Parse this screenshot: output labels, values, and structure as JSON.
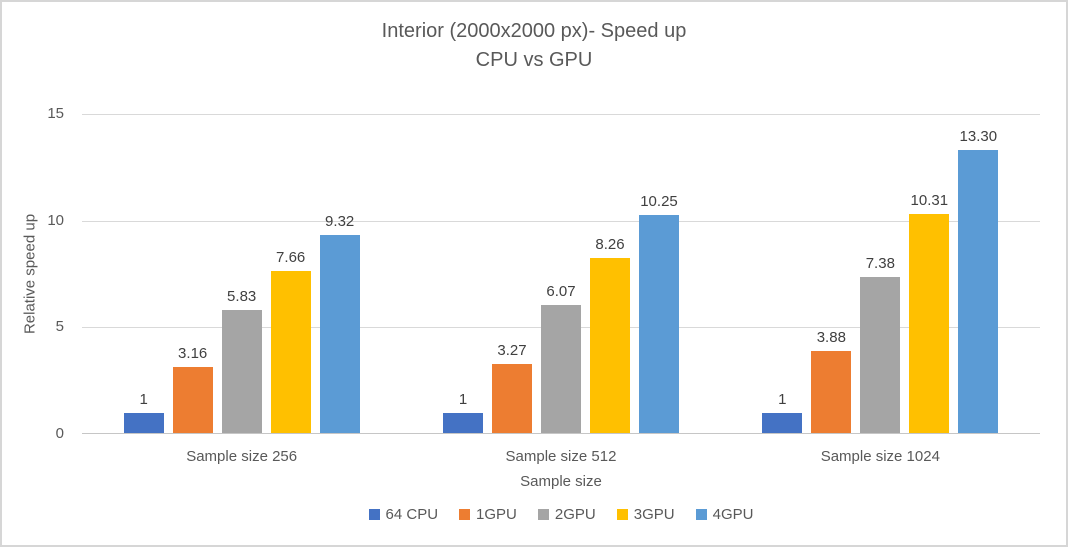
{
  "chart_data": {
    "type": "bar",
    "title": "Interior (2000x2000 px)- Speed up",
    "subtitle": "CPU vs GPU",
    "xlabel": "Sample size",
    "ylabel": "Relative speed up",
    "ylim": [
      0,
      15
    ],
    "yticks": [
      0,
      5,
      10,
      15
    ],
    "grid": true,
    "legend_position": "bottom",
    "categories": [
      "Sample size 256",
      "Sample size 512",
      "Sample size 1024"
    ],
    "series": [
      {
        "name": "64 CPU",
        "color": "#4472C4",
        "values": [
          1,
          1,
          1
        ],
        "labels": [
          "1",
          "1",
          "1"
        ]
      },
      {
        "name": "1GPU",
        "color": "#ED7D31",
        "values": [
          3.16,
          3.27,
          3.88
        ],
        "labels": [
          "3.16",
          "3.27",
          "3.88"
        ]
      },
      {
        "name": "2GPU",
        "color": "#A5A5A5",
        "values": [
          5.83,
          6.07,
          7.38
        ],
        "labels": [
          "5.83",
          "6.07",
          "7.38"
        ]
      },
      {
        "name": "3GPU",
        "color": "#FFC000",
        "values": [
          7.66,
          8.26,
          10.31
        ],
        "labels": [
          "7.66",
          "8.26",
          "10.31"
        ]
      },
      {
        "name": "4GPU",
        "color": "#5B9BD5",
        "values": [
          9.32,
          10.25,
          13.3
        ],
        "labels": [
          "9.32",
          "10.25",
          "13.30"
        ]
      }
    ]
  }
}
